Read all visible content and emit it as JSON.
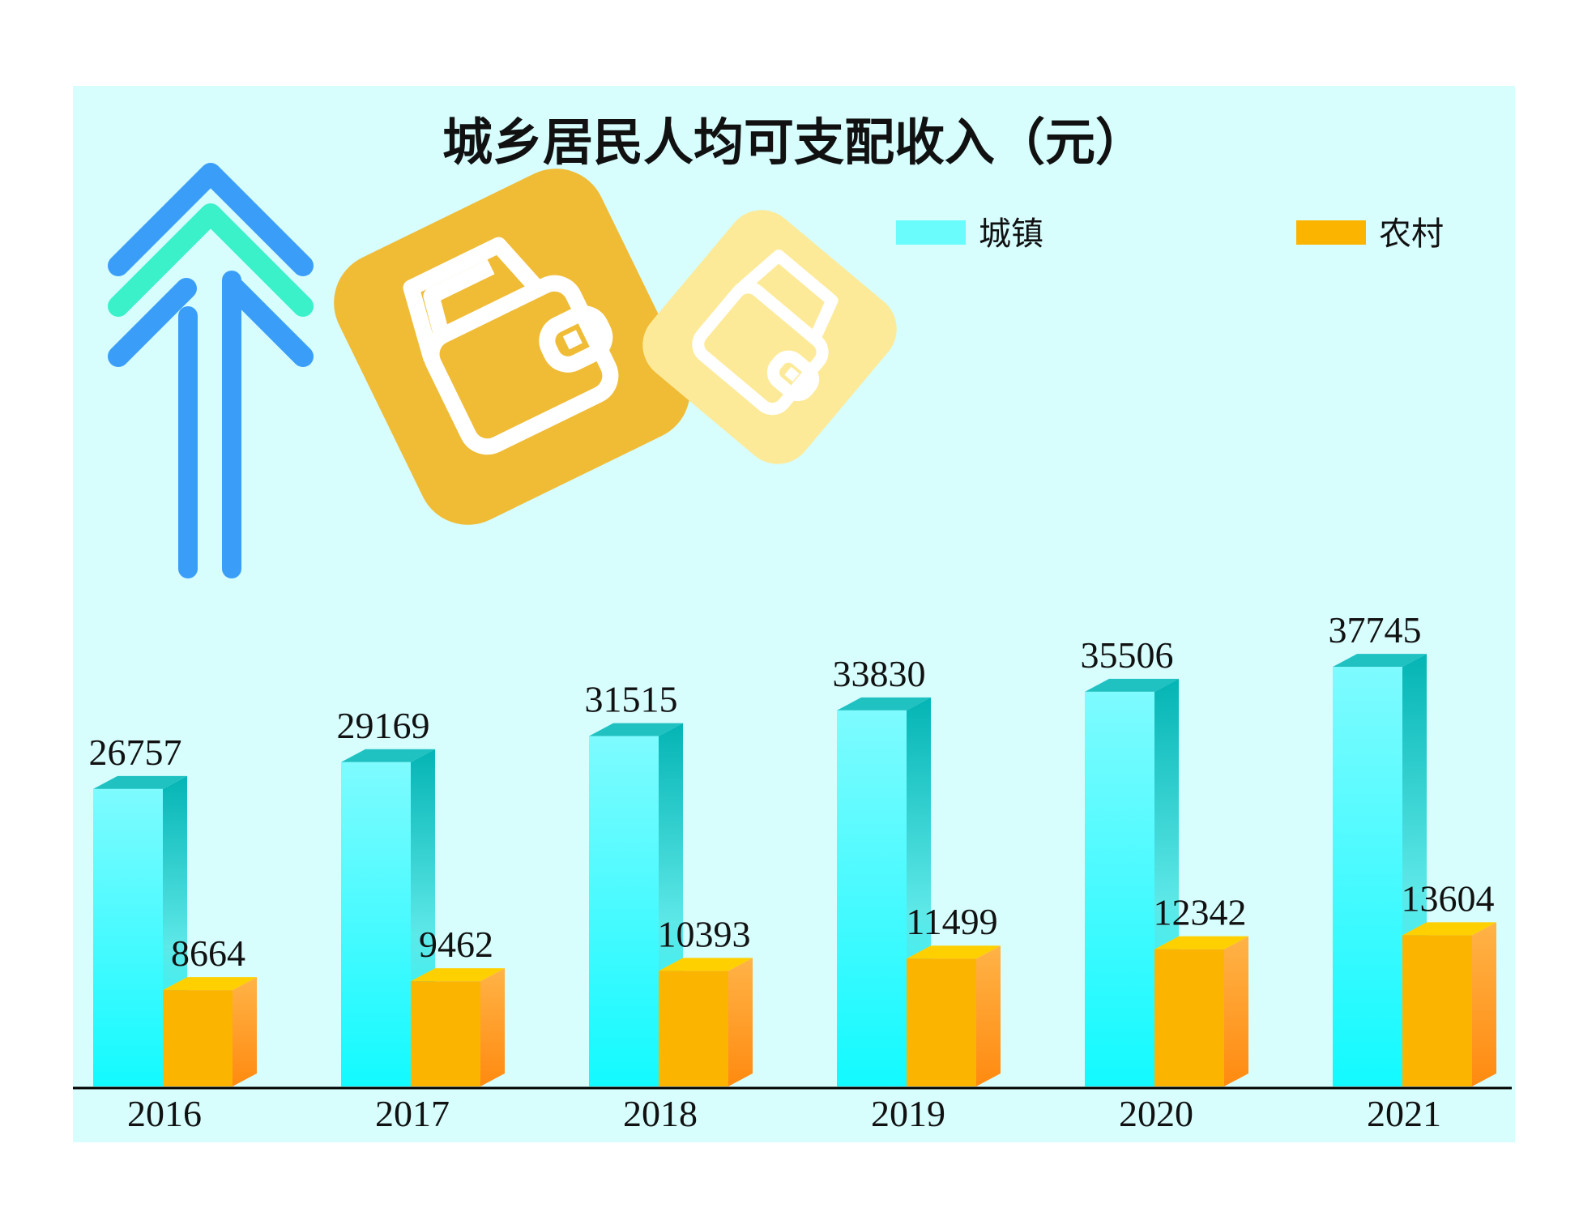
{
  "chart_data": {
    "type": "bar",
    "title": "城乡居民人均可支配收入（元）",
    "categories": [
      "2016",
      "2017",
      "2018",
      "2019",
      "2020",
      "2021"
    ],
    "series": [
      {
        "name": "城镇",
        "values": [
          26757,
          29169,
          31515,
          33830,
          35506,
          37745
        ],
        "color": "#1ff8ff"
      },
      {
        "name": "农村",
        "values": [
          8664,
          9462,
          10393,
          11499,
          12342,
          13604
        ],
        "color": "#fbb400"
      }
    ],
    "xlabel": "",
    "ylabel": "",
    "ylim": [
      0,
      40000
    ],
    "grid": false,
    "legend_position": "top-right",
    "background_color": "#d7fdfd",
    "decorations": [
      "up-arrow-icon",
      "wallet-icon",
      "wallet-icon"
    ]
  }
}
